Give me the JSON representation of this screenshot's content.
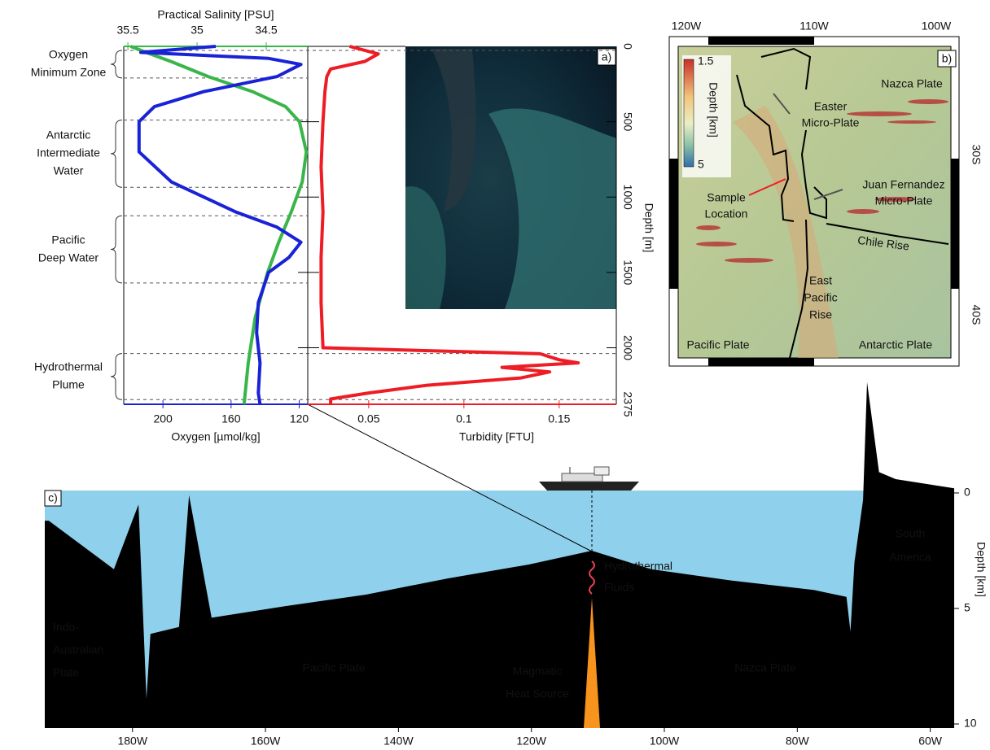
{
  "panel_a": {
    "label": "a)",
    "depth": {
      "title": "Depth [m]",
      "lim": [
        0,
        2375
      ],
      "ticks": [
        0,
        500,
        1000,
        1500,
        2000,
        2375
      ]
    },
    "salinity": {
      "title": "Practical Salinity [PSU]",
      "color": "#3ab54a",
      "lim": [
        35.53,
        34.2
      ],
      "ticks": [
        35.5,
        35,
        34.5
      ],
      "depths": [
        0,
        50,
        100,
        200,
        300,
        400,
        500,
        700,
        900,
        1100,
        1300,
        1500,
        1800,
        2100,
        2375
      ],
      "values": [
        35.48,
        35.34,
        35.19,
        34.92,
        34.6,
        34.36,
        34.26,
        34.21,
        34.24,
        34.32,
        34.41,
        34.49,
        34.58,
        34.63,
        34.66
      ]
    },
    "oxygen": {
      "title": "Oxygen [µmol/kg]",
      "color": "#1a22d6",
      "lim": [
        223,
        115
      ],
      "ticks": [
        200,
        160,
        120
      ],
      "depths": [
        0,
        40,
        80,
        120,
        200,
        300,
        400,
        500,
        700,
        900,
        1100,
        1200,
        1300,
        1400,
        1500,
        1700,
        1900,
        2100,
        2300,
        2375
      ],
      "values": [
        169,
        213,
        138,
        119,
        133,
        176,
        205,
        214,
        214,
        195,
        157,
        133,
        119,
        126,
        138,
        144,
        145,
        143,
        144,
        143
      ]
    },
    "turbidity": {
      "title": "Turbidity [FTU]",
      "color": "#ee1c24",
      "lim": [
        0.018,
        0.18
      ],
      "ticks": [
        0.05,
        0.1,
        0.15
      ],
      "depths": [
        0,
        50,
        100,
        150,
        200,
        300,
        500,
        800,
        1100,
        1400,
        1700,
        2000,
        2040,
        2080,
        2100,
        2130,
        2160,
        2200,
        2250,
        2300,
        2340,
        2375
      ],
      "values": [
        0.04,
        0.055,
        0.048,
        0.03,
        0.028,
        0.027,
        0.026,
        0.025,
        0.026,
        0.025,
        0.025,
        0.026,
        0.14,
        0.15,
        0.16,
        0.12,
        0.145,
        0.13,
        0.08,
        0.05,
        0.03,
        0.03
      ]
    },
    "water_masses": [
      {
        "label": [
          "Oxygen",
          "Minimum Zone"
        ],
        "top": 27,
        "bottom": 210
      },
      {
        "label": [
          "Antarctic",
          "Intermediate",
          "Water"
        ],
        "top": 489,
        "bottom": 935
      },
      {
        "label": [
          "Pacific",
          "Deep Water"
        ],
        "top": 1124,
        "bottom": 1570
      },
      {
        "label": [
          "Hydrothermal",
          "Plume"
        ],
        "top": 2038,
        "bottom": 2344
      }
    ]
  },
  "panel_b": {
    "label": "b)",
    "lon_ticks": [
      "120W",
      "110W",
      "100W"
    ],
    "lat_ticks": [
      "30S",
      "40S"
    ],
    "colorbar": {
      "title": "Depth [km]",
      "ticks": [
        "1.5",
        "5"
      ]
    },
    "features": {
      "nazca": [
        "Nazca Plate"
      ],
      "easter": [
        "Easter",
        "Micro-Plate"
      ],
      "juan": [
        "Juan Fernandez",
        "Micro-Plate"
      ],
      "sample": [
        "Sample",
        "Location"
      ],
      "chile": [
        "Chile Rise"
      ],
      "epr": [
        "East",
        "Pacific",
        "Rise"
      ],
      "pacific": [
        "Pacific Plate"
      ],
      "antarctic": [
        "Antarctic Plate"
      ]
    }
  },
  "panel_c": {
    "label": "c)",
    "depth": {
      "title": "Depth [km]",
      "lim": [
        0,
        10
      ],
      "ticks": [
        0,
        5,
        10
      ]
    },
    "lon": {
      "lim": [
        193.2,
        56.4
      ],
      "ticks": [
        {
          "value": 180,
          "label": "180W"
        },
        {
          "value": 160,
          "label": "160W"
        },
        {
          "value": 140,
          "label": "140W"
        },
        {
          "value": 120,
          "label": "120W"
        },
        {
          "value": 100,
          "label": "100W"
        },
        {
          "value": 80,
          "label": "80W"
        },
        {
          "value": 60,
          "label": "60W"
        }
      ]
    },
    "profile": {
      "lon": [
        193.2,
        192.6,
        182.8,
        179.1,
        177.9,
        177.3,
        173.0,
        171.5,
        168.1,
        157.1,
        144.9,
        132.6,
        120.4,
        110.9,
        102.0,
        89.7,
        77.5,
        72.6,
        72.0,
        71.4,
        70.1,
        69.5,
        67.7,
        65.2,
        56.4
      ],
      "depth": [
        1.2,
        1.2,
        3.3,
        0.5,
        8.9,
        6.1,
        5.8,
        0.1,
        5.4,
        4.9,
        4.4,
        3.7,
        3.1,
        2.5,
        3.3,
        3.8,
        4.2,
        4.5,
        6.0,
        3.0,
        0.3,
        -4.8,
        -0.9,
        -0.6,
        -0.2
      ]
    },
    "labels": {
      "indo": [
        "Indo-",
        "Australian",
        "Plate"
      ],
      "pacific": [
        "Pacific Plate"
      ],
      "nazca": [
        "Nazca Plate"
      ],
      "south_america": [
        "South",
        "America"
      ],
      "magmatic": [
        "Magmatic",
        "Heat Source"
      ],
      "fluids": [
        "Hydrothermal",
        "Fluids"
      ]
    }
  }
}
